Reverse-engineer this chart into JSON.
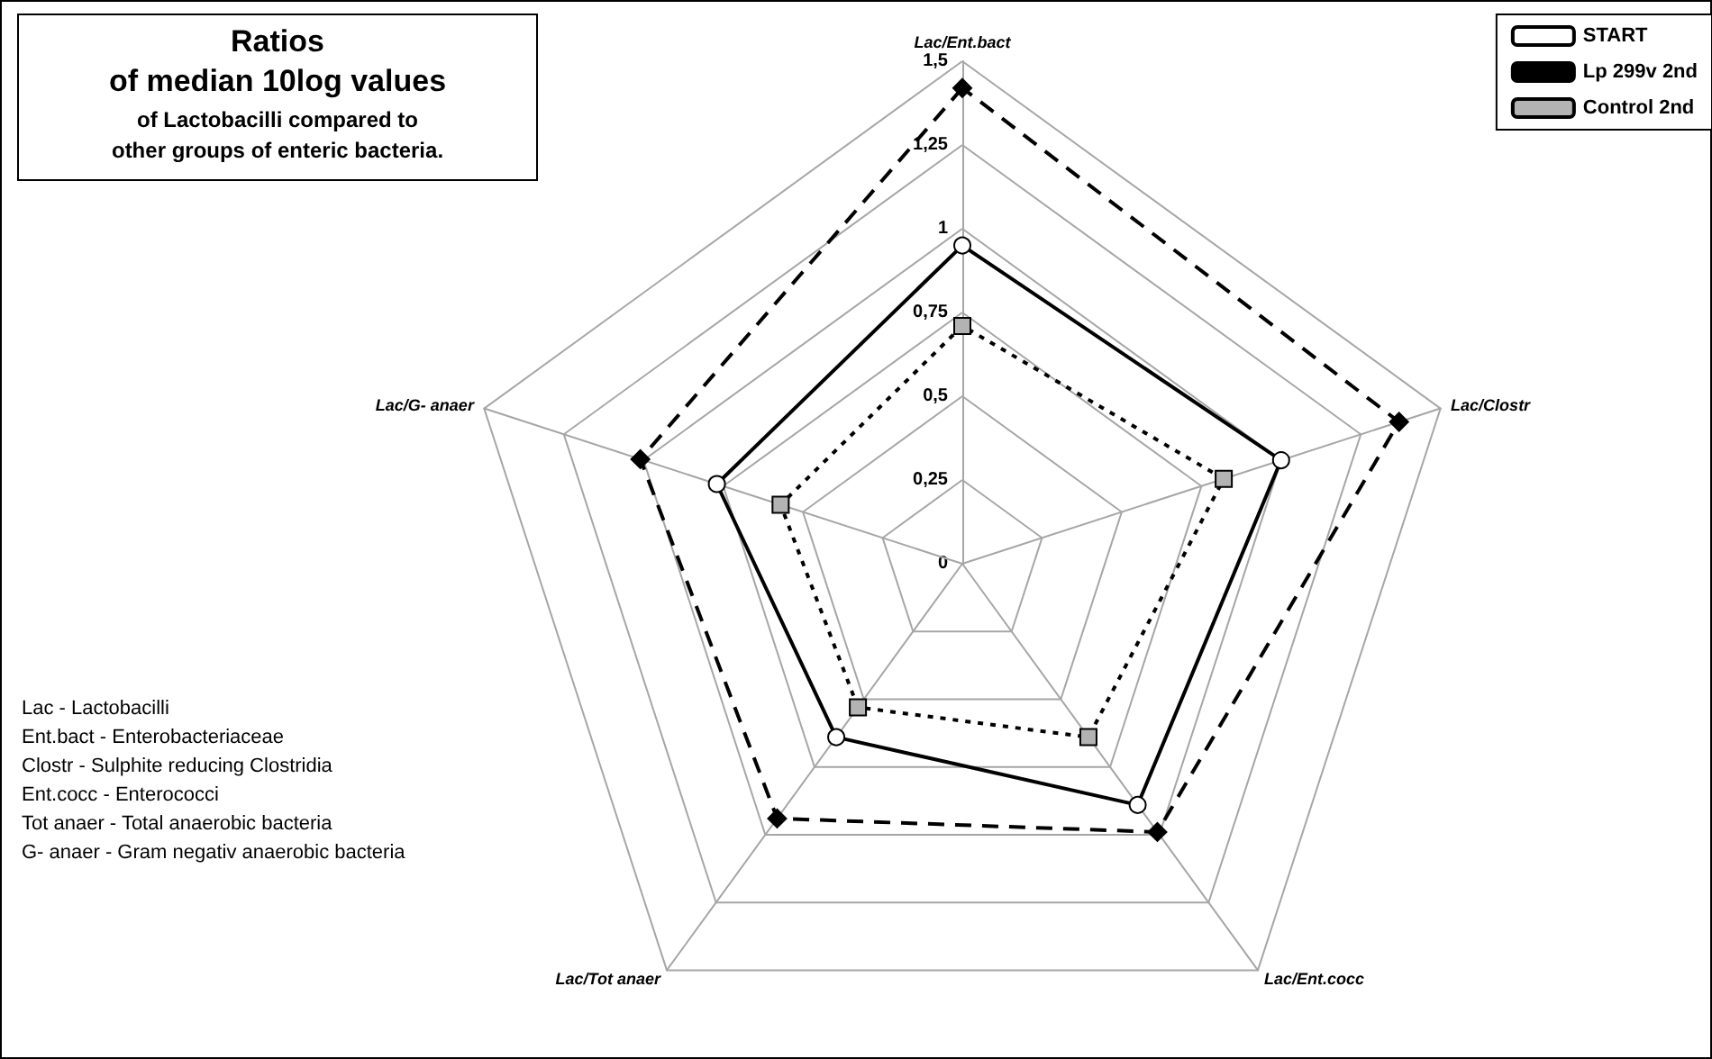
{
  "chart_data": {
    "type": "radar",
    "title": "Ratios\nof median 10log values",
    "subtitle": "of Lactobacilli compared to\nother groups of enteric bacteria.",
    "categories": [
      "Lac/Ent.bact",
      "Lac/Clostr",
      "Lac/Ent.cocc",
      "Lac/Tot anaer",
      "Lac/G- anaer"
    ],
    "series": [
      {
        "name": "START",
        "color": "#000000",
        "marker": "circle",
        "line_style": "solid",
        "values": [
          0.95,
          1.0,
          0.89,
          0.64,
          0.77
        ]
      },
      {
        "name": "Lp 299v 2nd",
        "color": "#000000",
        "marker": "diamond",
        "line_style": "dashed",
        "values": [
          1.42,
          1.37,
          0.99,
          0.94,
          1.01
        ]
      },
      {
        "name": "Control 2nd",
        "color": "#000000",
        "marker": "square",
        "line_style": "dotted",
        "values": [
          0.71,
          0.82,
          0.64,
          0.53,
          0.57
        ]
      }
    ],
    "ylim": [
      0,
      1.5
    ],
    "yticks": [
      0,
      {
        "value": 0.25,
        "label": "0,25"
      },
      {
        "value": 0.5,
        "label": "0,5"
      },
      {
        "value": 0.75,
        "label": "0,75"
      },
      1,
      {
        "value": 1.25,
        "label": "1,25"
      },
      {
        "value": 1.5,
        "label": "1,5"
      }
    ],
    "legend": "top right",
    "annotations": [
      "Lac - Lactobacilli",
      "Ent.bact - Enterobacteriaceae",
      "Clostr - Sulphite reducing Clostridia",
      "Ent.cocc - Enterococci",
      "Tot anaer - Total anaerobic bacteria",
      "G- anaer - Gram negativ anaerobic bacteria"
    ]
  }
}
